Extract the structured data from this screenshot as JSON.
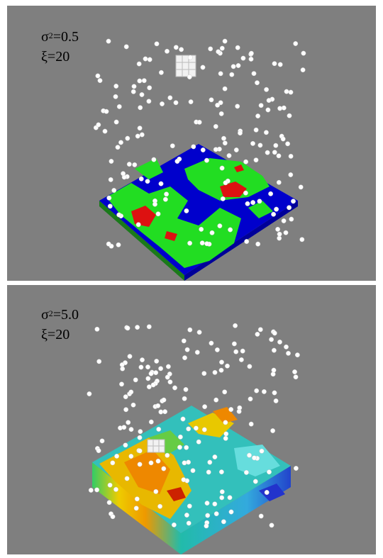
{
  "panels": [
    {
      "sigma_symbol": "σ",
      "sigma_exp": "2",
      "sigma_value": "=0.5",
      "xi_text": "ξ=20",
      "palette": [
        "#0000cc",
        "#00cc00",
        "#cc0000",
        "#ffffff"
      ]
    },
    {
      "sigma_symbol": "σ",
      "sigma_exp": "2",
      "sigma_value": "=5.0",
      "xi_text": "ξ=20",
      "palette": [
        "#0000cc",
        "#00aadd",
        "#33ddaa",
        "#ffee00",
        "#ee8800",
        "#cc2200",
        "#ffffff"
      ]
    }
  ]
}
